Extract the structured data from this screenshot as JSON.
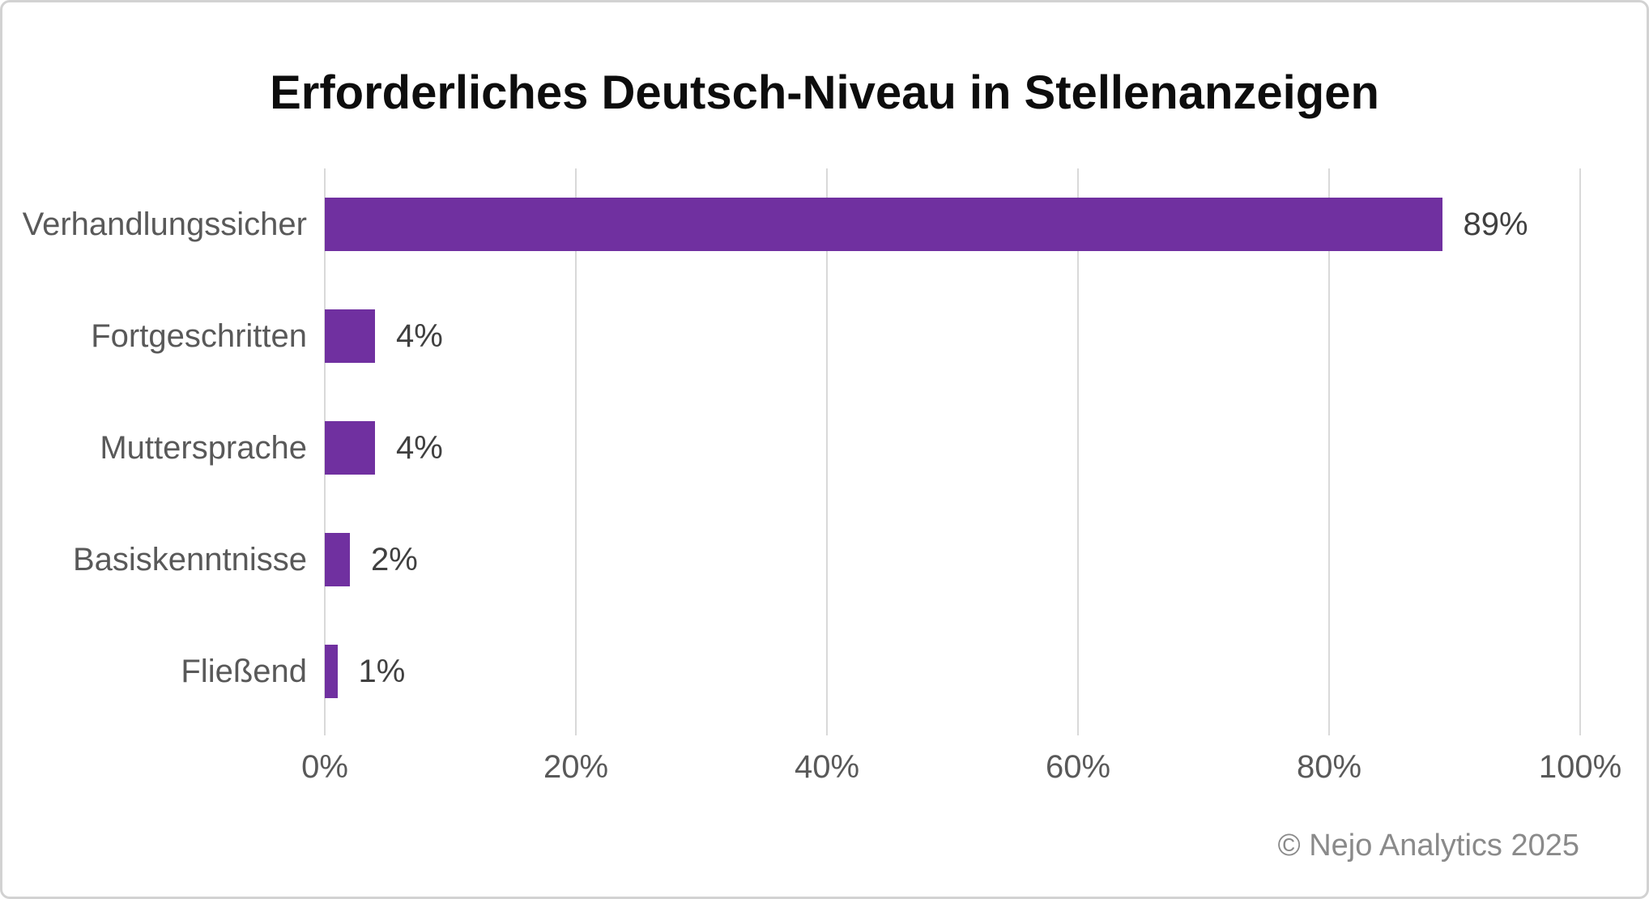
{
  "title": "Erforderliches Deutsch-Niveau in Stellenanzeigen",
  "footer": "© Nejo Analytics 2025",
  "chart_data": {
    "type": "bar",
    "orientation": "horizontal",
    "title": "Erforderliches Deutsch-Niveau in Stellenanzeigen",
    "categories": [
      "Verhandlungssicher",
      "Fortgeschritten",
      "Muttersprache",
      "Basiskenntnisse",
      "Fließend"
    ],
    "values": [
      89,
      4,
      4,
      2,
      1
    ],
    "value_labels": [
      "89%",
      "4%",
      "4%",
      "2%",
      "1%"
    ],
    "x_ticks": [
      "0%",
      "20%",
      "40%",
      "60%",
      "80%",
      "100%"
    ],
    "x_tick_values": [
      0,
      20,
      40,
      60,
      80,
      100
    ],
    "xlim": [
      0,
      100
    ],
    "xlabel": "",
    "ylabel": "",
    "grid": true,
    "legend_position": "none",
    "bar_color": "#7030A0",
    "gridline_color": "#D9D9D9",
    "category_label_color": "#595959",
    "value_label_color": "#404040",
    "tick_label_color": "#595959",
    "title_color": "#0d0d0d",
    "footer_color": "#8a8a8a"
  }
}
